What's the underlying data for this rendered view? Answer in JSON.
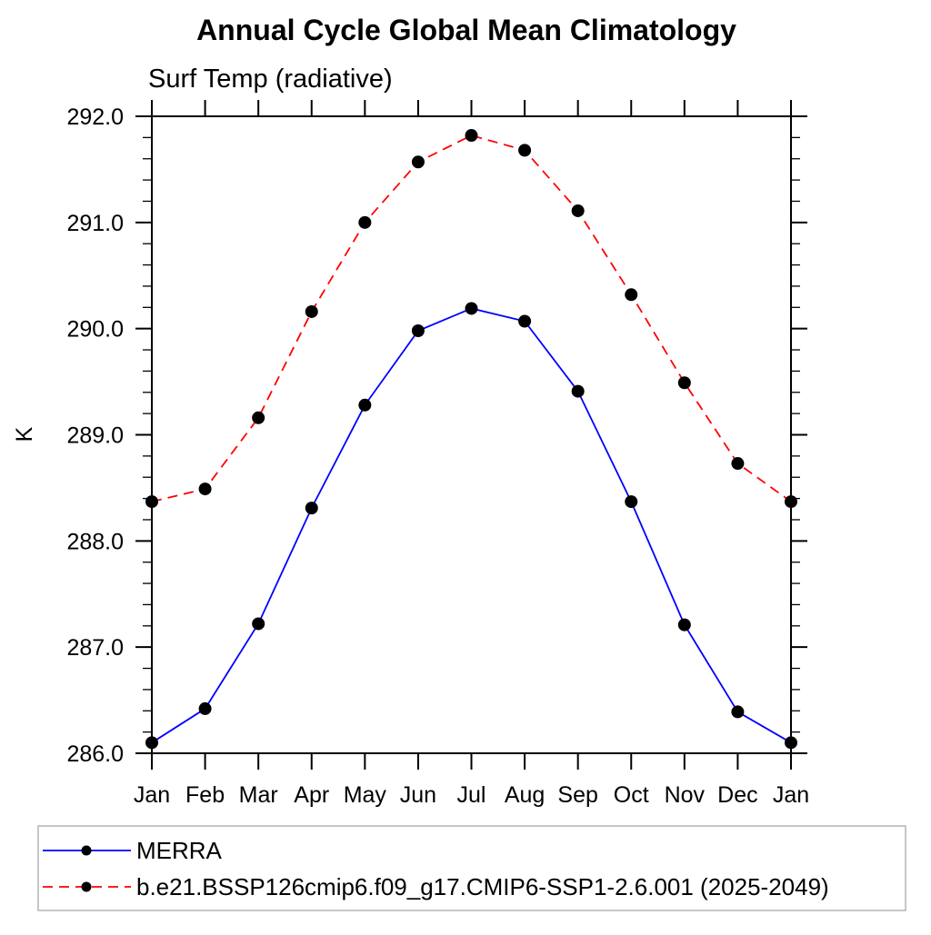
{
  "title": "Annual Cycle Global Mean Climatology",
  "subtitle": "Surf Temp (radiative)",
  "ylabel": "K",
  "chart_data": {
    "type": "line",
    "title": "Annual Cycle Global Mean Climatology",
    "subtitle": "Surf Temp (radiative)",
    "ylabel": "K",
    "xlabel": "",
    "categories": [
      "Jan",
      "Feb",
      "Mar",
      "Apr",
      "May",
      "Jun",
      "Jul",
      "Aug",
      "Sep",
      "Oct",
      "Nov",
      "Dec",
      "Jan"
    ],
    "series": [
      {
        "name": "MERRA",
        "color": "#0000ff",
        "line_style": "solid",
        "marker": "circle",
        "marker_color": "#000000",
        "values": [
          286.1,
          286.42,
          287.22,
          288.31,
          289.28,
          289.98,
          290.19,
          290.07,
          289.41,
          288.37,
          287.21,
          286.39,
          286.1
        ]
      },
      {
        "name": "b.e21.BSSP126cmip6.f09_g17.CMIP6-SSP1-2.6.001 (2025-2049)",
        "color": "#ff0000",
        "line_style": "dashed",
        "marker": "circle",
        "marker_color": "#000000",
        "values": [
          288.37,
          288.49,
          289.16,
          290.16,
          291.0,
          291.57,
          291.82,
          291.68,
          291.11,
          290.32,
          289.49,
          288.73,
          288.37
        ]
      }
    ],
    "ylim": [
      286.0,
      292.0
    ],
    "ytick_step": 1.0,
    "yminor_step": 0.2,
    "ytick_labels": [
      "286.0",
      "287.0",
      "288.0",
      "289.0",
      "290.0",
      "291.0",
      "292.0"
    ],
    "grid": false,
    "legend_position": "bottom",
    "axis_color": "#000000",
    "legend_border_color": "#b4b4b4"
  }
}
